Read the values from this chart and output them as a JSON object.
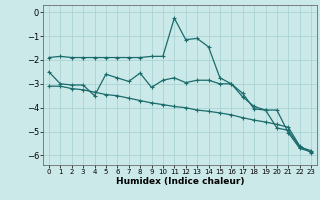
{
  "title": "",
  "xlabel": "Humidex (Indice chaleur)",
  "bg_color": "#cce9e9",
  "grid_color": "#aad4d4",
  "line_color": "#1a6b6b",
  "xlim": [
    -0.5,
    23.5
  ],
  "ylim": [
    -6.4,
    0.3
  ],
  "xticks": [
    0,
    1,
    2,
    3,
    4,
    5,
    6,
    7,
    8,
    9,
    10,
    11,
    12,
    13,
    14,
    15,
    16,
    17,
    18,
    19,
    20,
    21,
    22,
    23
  ],
  "yticks": [
    0,
    -1,
    -2,
    -3,
    -4,
    -5,
    -6
  ],
  "x": [
    0,
    1,
    2,
    3,
    4,
    5,
    6,
    7,
    8,
    9,
    10,
    11,
    12,
    13,
    14,
    15,
    16,
    17,
    18,
    19,
    20,
    21,
    22,
    23
  ],
  "line1": [
    -1.9,
    -1.85,
    -1.9,
    -1.9,
    -1.9,
    -1.9,
    -1.9,
    -1.9,
    -1.9,
    -1.85,
    -1.85,
    -0.25,
    -1.15,
    -1.1,
    -1.45,
    -2.75,
    -3.0,
    -3.4,
    -4.05,
    -4.1,
    -4.1,
    -5.05,
    -5.7,
    -5.85
  ],
  "line2": [
    -2.5,
    -3.0,
    -3.05,
    -3.05,
    -3.5,
    -2.6,
    -2.75,
    -2.9,
    -2.55,
    -3.15,
    -2.85,
    -2.75,
    -2.95,
    -2.85,
    -2.85,
    -3.0,
    -3.0,
    -3.55,
    -3.95,
    -4.1,
    -4.85,
    -4.95,
    -5.65,
    -5.8
  ],
  "line3": [
    -3.1,
    -3.1,
    -3.2,
    -3.25,
    -3.35,
    -3.45,
    -3.5,
    -3.6,
    -3.7,
    -3.8,
    -3.87,
    -3.95,
    -4.0,
    -4.1,
    -4.15,
    -4.22,
    -4.3,
    -4.42,
    -4.52,
    -4.6,
    -4.7,
    -4.82,
    -5.6,
    -5.88
  ]
}
